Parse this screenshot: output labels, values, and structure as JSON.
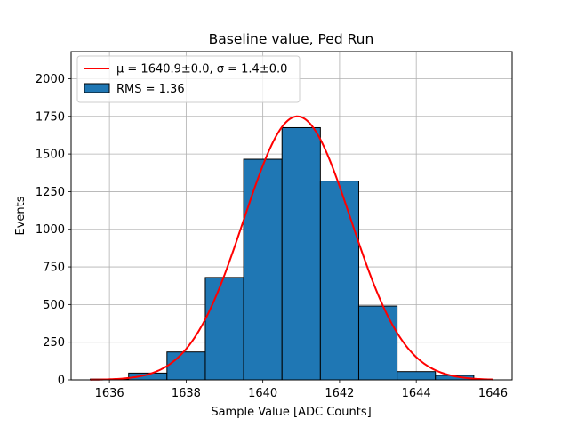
{
  "chart_data": {
    "type": "bar",
    "title": "Baseline value, Ped Run",
    "xlabel": "Sample Value [ADC Counts]",
    "ylabel": "Events",
    "xlim": [
      1635.0,
      1646.5
    ],
    "ylim": [
      0,
      2180
    ],
    "xticks": [
      1636,
      1638,
      1640,
      1642,
      1644,
      1646
    ],
    "yticks": [
      0,
      250,
      500,
      750,
      1000,
      1250,
      1500,
      1750,
      2000
    ],
    "grid": true,
    "legend_position": "top-left",
    "bins": [
      {
        "x0": 1635.5,
        "x1": 1636.5,
        "value": 5
      },
      {
        "x0": 1636.5,
        "x1": 1637.5,
        "value": 45
      },
      {
        "x0": 1637.5,
        "x1": 1638.5,
        "value": 185
      },
      {
        "x0": 1638.5,
        "x1": 1639.5,
        "value": 680
      },
      {
        "x0": 1639.5,
        "x1": 1640.5,
        "value": 1465
      },
      {
        "x0": 1640.5,
        "x1": 1641.5,
        "value": 1675
      },
      {
        "x0": 1641.5,
        "x1": 1642.5,
        "value": 1320
      },
      {
        "x0": 1642.5,
        "x1": 1643.5,
        "value": 490
      },
      {
        "x0": 1643.5,
        "x1": 1644.5,
        "value": 55
      },
      {
        "x0": 1644.5,
        "x1": 1645.5,
        "value": 30
      }
    ],
    "fit": {
      "type": "gaussian",
      "mu": 1640.9,
      "sigma": 1.4,
      "amplitude": 1750,
      "x_range": [
        1635.5,
        1646.0
      ]
    },
    "series": [
      {
        "name": "μ = 1640.9±0.0, σ = 1.4±0.0",
        "kind": "line",
        "color": "#ff0000"
      },
      {
        "name": "RMS = 1.36",
        "kind": "bar",
        "color": "#1f77b4"
      }
    ]
  }
}
